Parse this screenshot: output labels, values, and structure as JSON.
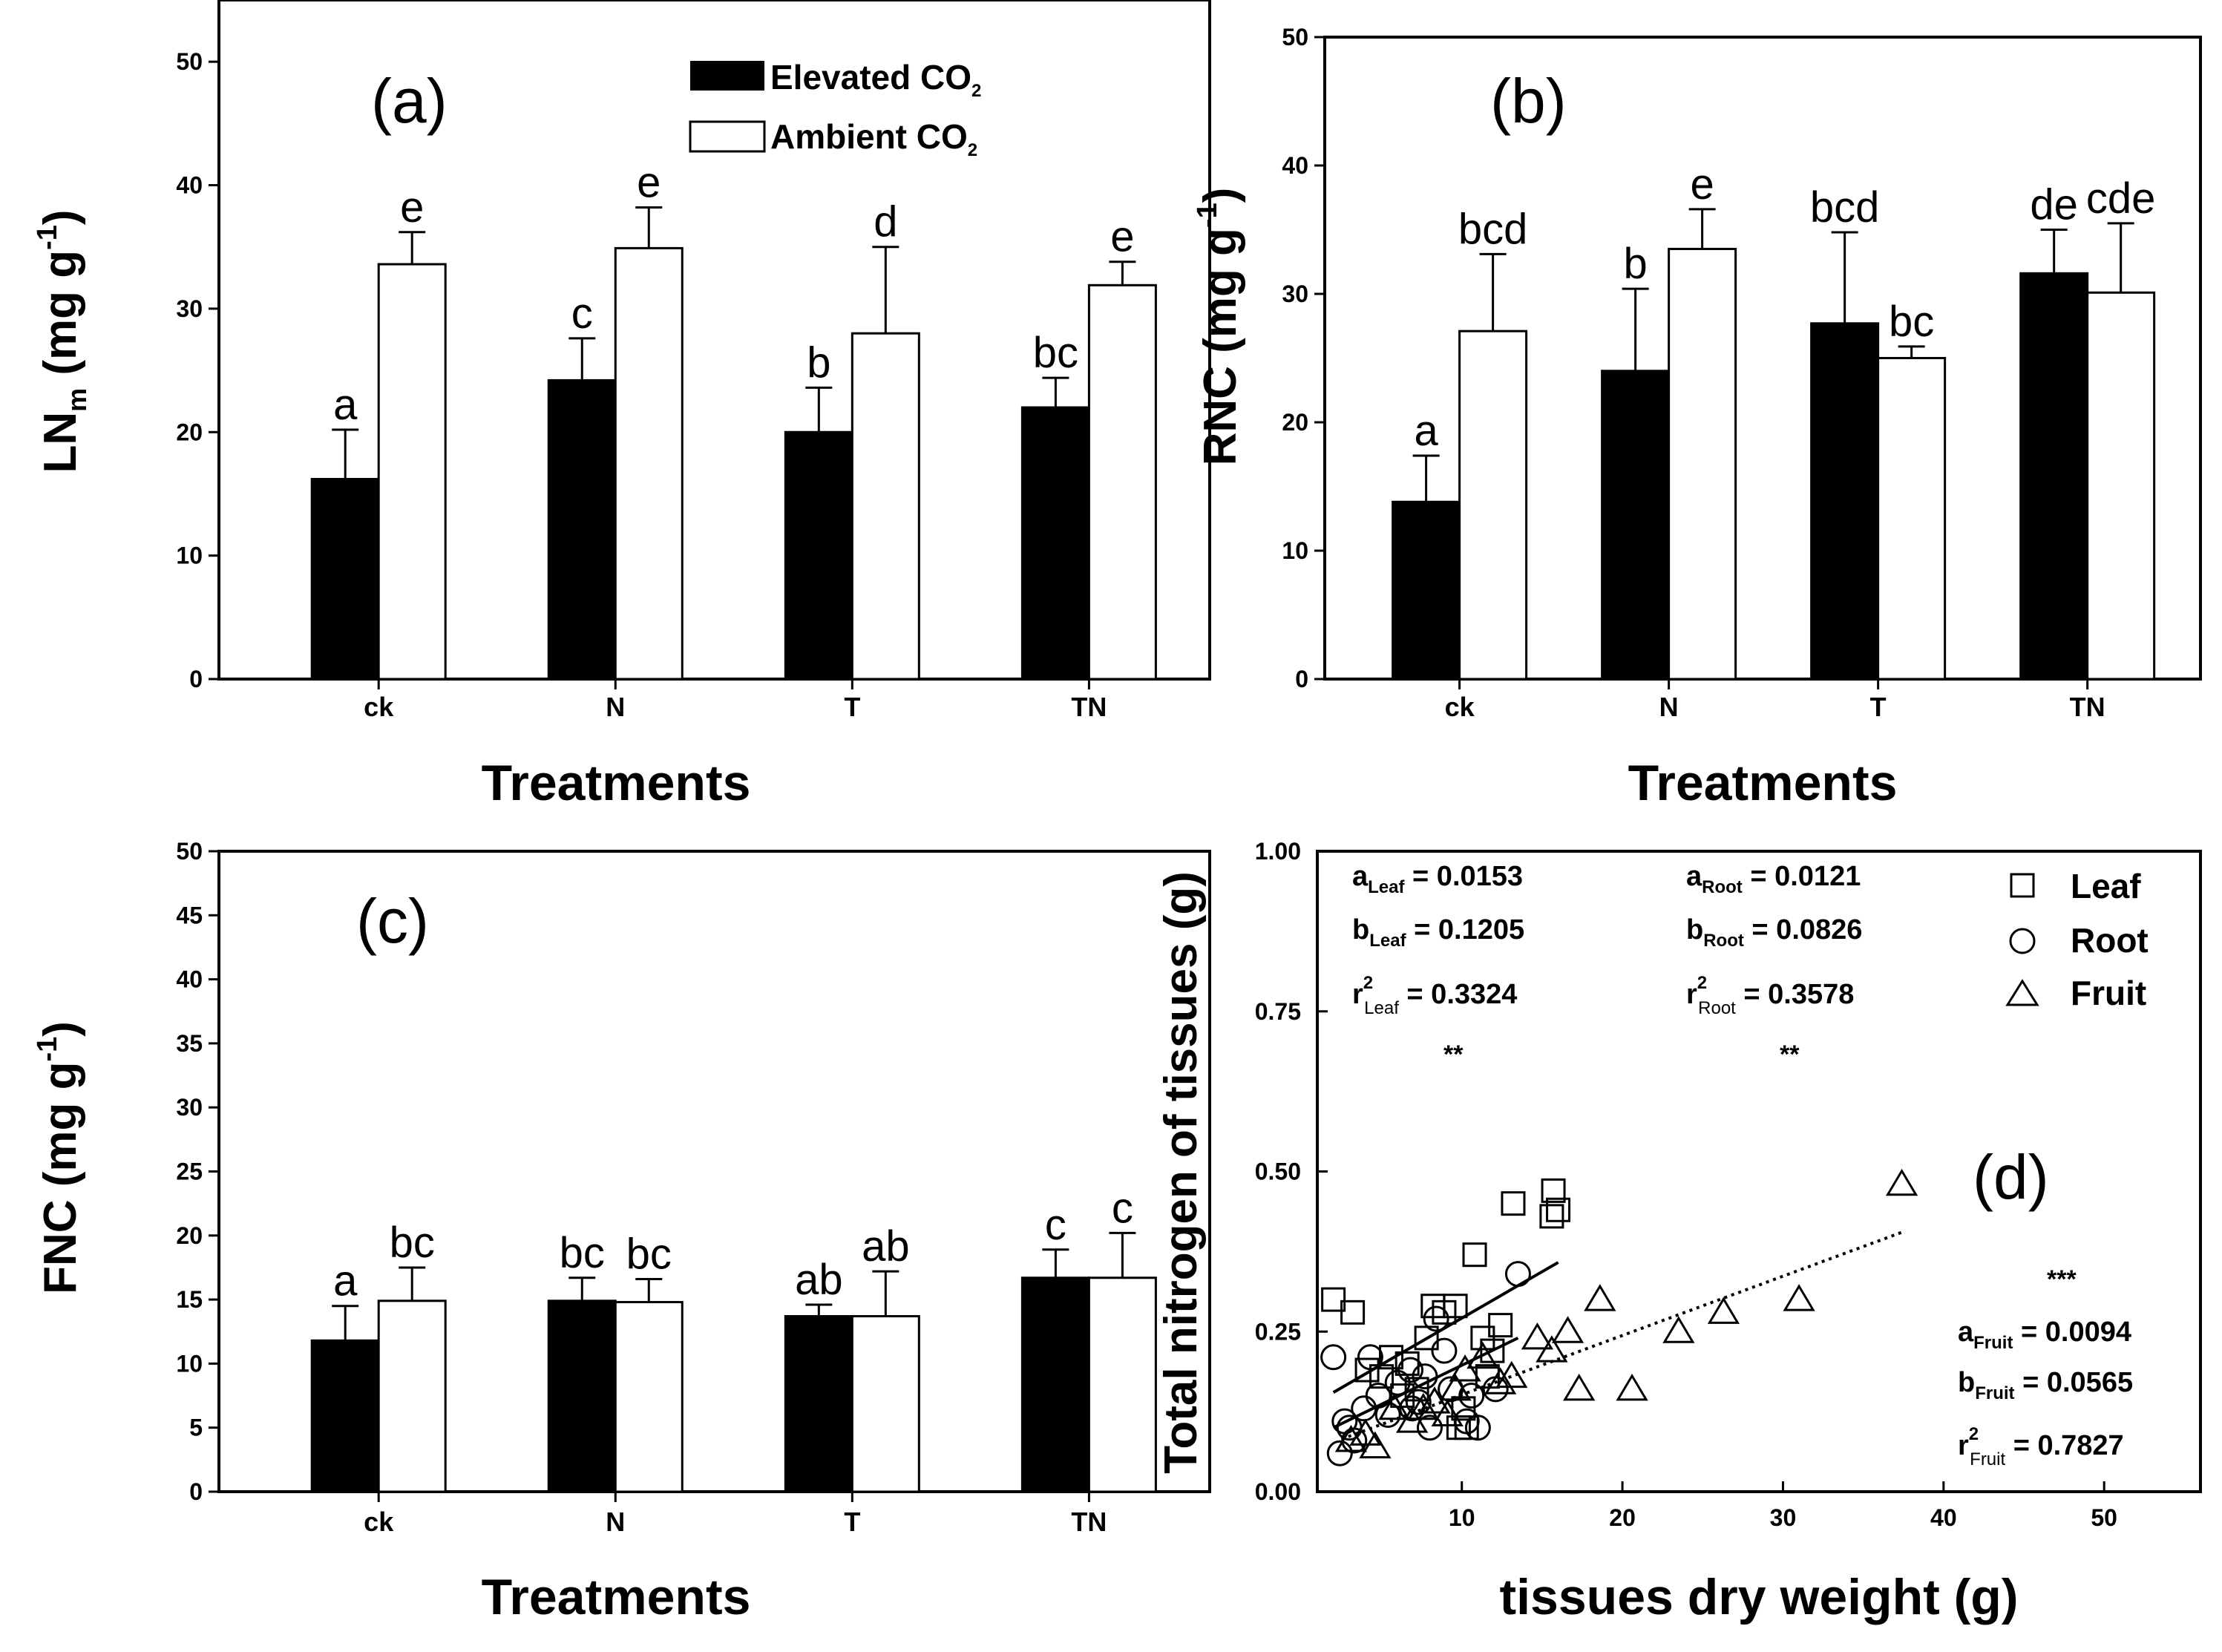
{
  "colors": {
    "elevated": "#000000",
    "ambient": "#ffffff",
    "axis": "#000000"
  },
  "legend": {
    "elevated": "Elevated CO",
    "ambient": "Ambient CO",
    "sub": "2"
  },
  "chart_data": [
    {
      "type": "bar",
      "panel_label": "(a)",
      "xlabel": "Treatments",
      "ylabel_main": "LN",
      "ylabel_sub": "m",
      "ylabel_unit": " (mg g",
      "ylabel_exp": "-1",
      "ylabel_close": ")",
      "ylim": [
        0,
        55
      ],
      "yticks": [
        0,
        10,
        20,
        30,
        40,
        50
      ],
      "categories": [
        "ck",
        "N",
        "T",
        "TN"
      ],
      "series": [
        {
          "name": "Elevated CO2",
          "values": [
            16.2,
            24.2,
            20.0,
            22.0
          ],
          "errors": [
            4.0,
            3.4,
            3.6,
            2.4
          ],
          "letters": [
            "a",
            "c",
            "b",
            "bc"
          ]
        },
        {
          "name": "Ambient CO2",
          "values": [
            33.6,
            34.9,
            28.0,
            31.9
          ],
          "errors": [
            2.6,
            3.3,
            7.0,
            1.9
          ],
          "letters": [
            "e",
            "e",
            "d",
            "e"
          ]
        }
      ]
    },
    {
      "type": "bar",
      "panel_label": "(b)",
      "xlabel": "Treatments",
      "ylabel_main": "RNC",
      "ylabel_sub": "",
      "ylabel_unit": " (mg g",
      "ylabel_exp": "-1",
      "ylabel_close": ")",
      "ylim": [
        0,
        50
      ],
      "yticks": [
        0,
        10,
        20,
        30,
        40,
        50
      ],
      "categories": [
        "ck",
        "N",
        "T",
        "TN"
      ],
      "series": [
        {
          "name": "Elevated CO2",
          "values": [
            13.8,
            24.0,
            27.7,
            31.6
          ],
          "errors": [
            3.6,
            6.4,
            7.1,
            3.4
          ],
          "letters": [
            "a",
            "b",
            "bcd",
            "de"
          ]
        },
        {
          "name": "Ambient CO2",
          "values": [
            27.1,
            33.5,
            25.0,
            30.1
          ],
          "errors": [
            6.0,
            3.1,
            0.9,
            5.4
          ],
          "letters": [
            "bcd",
            "e",
            "bc",
            "cde"
          ]
        }
      ]
    },
    {
      "type": "bar",
      "panel_label": "(c)",
      "xlabel": "Treatments",
      "ylabel_main": "FNC",
      "ylabel_sub": "",
      "ylabel_unit": " (mg g",
      "ylabel_exp": "-1",
      "ylabel_close": ")",
      "ylim": [
        0,
        50
      ],
      "yticks": [
        0,
        5,
        10,
        15,
        20,
        25,
        30,
        35,
        40,
        45,
        50
      ],
      "categories": [
        "ck",
        "N",
        "T",
        "TN"
      ],
      "series": [
        {
          "name": "Elevated CO2",
          "values": [
            11.8,
            14.9,
            13.7,
            16.7
          ],
          "errors": [
            2.7,
            1.8,
            0.9,
            2.2
          ],
          "letters": [
            "a",
            "bc",
            "ab",
            "c"
          ]
        },
        {
          "name": "Ambient CO2",
          "values": [
            14.9,
            14.8,
            13.7,
            16.7
          ],
          "errors": [
            2.6,
            1.8,
            3.5,
            3.5
          ],
          "letters": [
            "bc",
            "bc",
            "ab",
            "c"
          ]
        }
      ]
    },
    {
      "type": "scatter",
      "panel_label": "(d)",
      "xlabel": "tissues dry weight (g)",
      "ylabel": "Total nitrogen of tissues (g)",
      "xlim": [
        1,
        56
      ],
      "ylim": [
        0,
        1
      ],
      "xticks": [
        10,
        20,
        30,
        40,
        50
      ],
      "yticks": [
        "0.00",
        "0.25",
        "0.50",
        "0.75",
        "1.00"
      ],
      "legend": [
        "Leaf",
        "Root",
        "Fruit"
      ],
      "series": [
        {
          "name": "Leaf",
          "marker": "square",
          "x": [
            2.0,
            3.2,
            4.1,
            5.6,
            6.3,
            7.2,
            8.2,
            8.9,
            9.6,
            10.1,
            10.8,
            11.3,
            11.6,
            12.4,
            13.2,
            15.6,
            15.7,
            16.0,
            9.8,
            5.0,
            6.6,
            7.8,
            10.3,
            11.9
          ],
          "y": [
            0.3,
            0.28,
            0.19,
            0.21,
            0.15,
            0.16,
            0.29,
            0.28,
            0.29,
            0.13,
            0.37,
            0.24,
            0.18,
            0.26,
            0.45,
            0.43,
            0.47,
            0.44,
            0.1,
            0.18,
            0.2,
            0.24,
            0.1,
            0.22
          ]
        },
        {
          "name": "Root",
          "marker": "circle",
          "x": [
            2.0,
            2.4,
            2.7,
            3.0,
            3.3,
            3.9,
            4.3,
            4.8,
            5.4,
            6.0,
            6.8,
            7.3,
            8.0,
            8.4,
            8.9,
            9.3,
            10.3,
            11.0,
            12.1,
            13.5,
            6.9,
            7.7,
            10.6
          ],
          "y": [
            0.21,
            0.06,
            0.11,
            0.1,
            0.08,
            0.13,
            0.21,
            0.15,
            0.12,
            0.17,
            0.19,
            0.14,
            0.1,
            0.27,
            0.22,
            0.16,
            0.11,
            0.1,
            0.16,
            0.34,
            0.13,
            0.18,
            0.15
          ]
        },
        {
          "name": "Fruit",
          "marker": "triangle",
          "x": [
            3.1,
            4.0,
            4.6,
            5.8,
            6.9,
            8.3,
            9.6,
            10.2,
            11.3,
            12.4,
            13.1,
            14.7,
            15.6,
            16.6,
            17.3,
            18.6,
            20.6,
            23.5,
            26.3,
            31.0,
            37.4,
            7.6,
            9.1
          ],
          "y": [
            0.08,
            0.09,
            0.07,
            0.13,
            0.11,
            0.14,
            0.16,
            0.19,
            0.21,
            0.17,
            0.18,
            0.24,
            0.22,
            0.25,
            0.16,
            0.3,
            0.16,
            0.25,
            0.28,
            0.3,
            0.48,
            0.13,
            0.12
          ]
        }
      ],
      "fits": [
        {
          "name": "Leaf fit",
          "style": "solid",
          "x": [
            2.0,
            16.0
          ],
          "y": [
            0.155,
            0.358
          ]
        },
        {
          "name": "Root fit",
          "style": "solid",
          "x": [
            2.0,
            13.5
          ],
          "y": [
            0.1,
            0.24
          ]
        },
        {
          "name": "Fruit fit",
          "style": "dotted",
          "x": [
            2.5,
            37.4
          ],
          "y": [
            0.082,
            0.405
          ]
        }
      ],
      "stats": {
        "leaf": {
          "a_sub": "Leaf",
          "a_val": " = 0.0153",
          "b_sub": "Leaf",
          "b_val": " = 0.1205",
          "r_sub": "Leaf",
          "r_val": " = 0.3324",
          "sig": "**"
        },
        "root": {
          "a_sub": "Root",
          "a_val": " = 0.0121",
          "b_sub": "Root",
          "b_val": " = 0.0826",
          "r_sub": "Root",
          "r_val": " = 0.3578",
          "sig": "**"
        },
        "fruit": {
          "a_sub": "Fruit",
          "a_val": " = 0.0094",
          "b_sub": "Fruit",
          "b_val": " = 0.0565",
          "r_sub": "Fruit",
          "r_val": " = 0.7827",
          "sig": "***"
        }
      }
    }
  ]
}
